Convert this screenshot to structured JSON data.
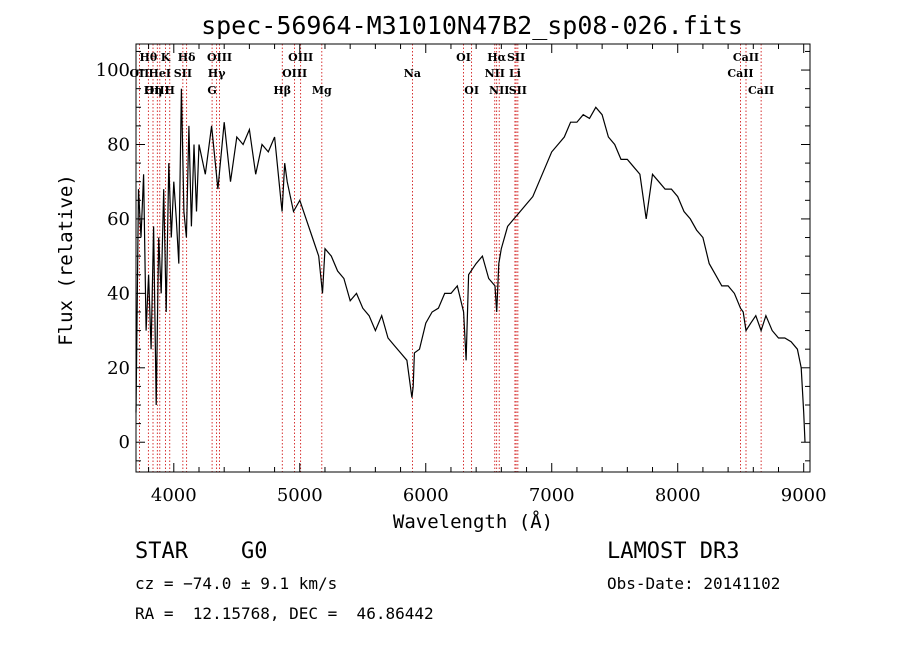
{
  "chart_data": {
    "type": "line",
    "title": "spec-56964-M31010N47B2_sp08-026.fits",
    "xlabel": "Wavelength (Å)",
    "ylabel": "Flux (relative)",
    "xlim": [
      3700,
      9050
    ],
    "ylim": [
      -8,
      107
    ],
    "x_ticks": [
      4000,
      5000,
      6000,
      7000,
      8000,
      9000
    ],
    "y_ticks": [
      0,
      20,
      40,
      60,
      80,
      100
    ],
    "series": [
      {
        "name": "flux",
        "x": [
          3700,
          3720,
          3740,
          3760,
          3780,
          3800,
          3820,
          3840,
          3860,
          3880,
          3900,
          3920,
          3940,
          3960,
          3980,
          4000,
          4020,
          4040,
          4060,
          4080,
          4100,
          4120,
          4140,
          4160,
          4180,
          4200,
          4250,
          4300,
          4350,
          4400,
          4450,
          4500,
          4550,
          4600,
          4650,
          4700,
          4750,
          4800,
          4850,
          4860,
          4880,
          4900,
          4950,
          5000,
          5050,
          5100,
          5150,
          5180,
          5200,
          5250,
          5300,
          5350,
          5400,
          5450,
          5500,
          5550,
          5600,
          5650,
          5700,
          5750,
          5800,
          5850,
          5890,
          5900,
          5910,
          5950,
          6000,
          6050,
          6100,
          6150,
          6200,
          6250,
          6300,
          6320,
          6340,
          6400,
          6450,
          6500,
          6550,
          6563,
          6580,
          6600,
          6650,
          6700,
          6750,
          6800,
          6850,
          6900,
          6950,
          7000,
          7050,
          7100,
          7150,
          7200,
          7250,
          7300,
          7350,
          7400,
          7450,
          7500,
          7550,
          7600,
          7650,
          7700,
          7750,
          7800,
          7850,
          7900,
          7950,
          8000,
          8050,
          8100,
          8150,
          8200,
          8250,
          8300,
          8350,
          8400,
          8450,
          8498,
          8520,
          8542,
          8580,
          8620,
          8662,
          8700,
          8750,
          8800,
          8850,
          8900,
          8950,
          8980,
          9000,
          9010
        ],
        "y": [
          8,
          68,
          55,
          72,
          30,
          45,
          25,
          58,
          10,
          55,
          40,
          68,
          35,
          75,
          55,
          70,
          60,
          48,
          95,
          62,
          55,
          85,
          58,
          80,
          62,
          80,
          72,
          85,
          68,
          86,
          70,
          82,
          80,
          84,
          72,
          80,
          78,
          82,
          65,
          62,
          75,
          70,
          62,
          65,
          60,
          55,
          50,
          40,
          52,
          50,
          46,
          44,
          38,
          40,
          36,
          34,
          30,
          34,
          28,
          26,
          24,
          22,
          12,
          15,
          24,
          25,
          32,
          35,
          36,
          40,
          40,
          42,
          35,
          22,
          45,
          48,
          50,
          44,
          42,
          35,
          48,
          52,
          58,
          60,
          62,
          64,
          66,
          70,
          74,
          78,
          80,
          82,
          86,
          86,
          88,
          87,
          90,
          88,
          82,
          80,
          76,
          76,
          74,
          72,
          60,
          72,
          70,
          68,
          68,
          66,
          62,
          60,
          57,
          55,
          48,
          45,
          42,
          42,
          40,
          36,
          35,
          30,
          32,
          34,
          30,
          34,
          30,
          28,
          28,
          27,
          25,
          20,
          8,
          0
        ]
      }
    ],
    "line_markers": [
      {
        "label": "Hθ",
        "wavelength": 3798,
        "row": 1
      },
      {
        "label": "OII",
        "wavelength": 3727,
        "row": 2
      },
      {
        "label": "OIII",
        "wavelength": 3869,
        "row": 3
      },
      {
        "label": "K",
        "wavelength": 3934,
        "row": 1
      },
      {
        "label": "HeI",
        "wavelength": 3889,
        "row": 2
      },
      {
        "label": "Hη",
        "wavelength": 3835,
        "row": 3
      },
      {
        "label": "Hδ",
        "wavelength": 4102,
        "row": 1
      },
      {
        "label": "SII",
        "wavelength": 4072,
        "row": 2
      },
      {
        "label": "H",
        "wavelength": 3968,
        "row": 3
      },
      {
        "label": "OIII",
        "wavelength": 4363,
        "row": 1
      },
      {
        "label": "Hγ",
        "wavelength": 4340,
        "row": 2
      },
      {
        "label": "G",
        "wavelength": 4304,
        "row": 3
      },
      {
        "label": "OIII",
        "wavelength": 5007,
        "row": 1
      },
      {
        "label": "OIII",
        "wavelength": 4959,
        "row": 2
      },
      {
        "label": "Hβ",
        "wavelength": 4861,
        "row": 3
      },
      {
        "label": "Mg",
        "wavelength": 5175,
        "row": 3
      },
      {
        "label": "Na",
        "wavelength": 5894,
        "row": 2
      },
      {
        "label": "OI",
        "wavelength": 6300,
        "row": 1
      },
      {
        "label": "OI",
        "wavelength": 6364,
        "row": 3
      },
      {
        "label": "Hα",
        "wavelength": 6563,
        "row": 1
      },
      {
        "label": "NII",
        "wavelength": 6548,
        "row": 2
      },
      {
        "label": "NII",
        "wavelength": 6583,
        "row": 3
      },
      {
        "label": "SII",
        "wavelength": 6717,
        "row": 1
      },
      {
        "label": "Li",
        "wavelength": 6708,
        "row": 2
      },
      {
        "label": "SII",
        "wavelength": 6731,
        "row": 3
      },
      {
        "label": "CaII",
        "wavelength": 8542,
        "row": 1
      },
      {
        "label": "CaII",
        "wavelength": 8498,
        "row": 2
      },
      {
        "label": "CaII",
        "wavelength": 8662,
        "row": 3
      }
    ],
    "marker_color": "#cc0000"
  },
  "info": {
    "object_class": "STAR",
    "subclass": "G0",
    "survey": "LAMOST DR3",
    "cz": "cz = −74.0 ± 9.1 km/s",
    "obs_date": "Obs-Date: 20141102",
    "coords": "RA =  12.15768, DEC =  46.86442"
  }
}
